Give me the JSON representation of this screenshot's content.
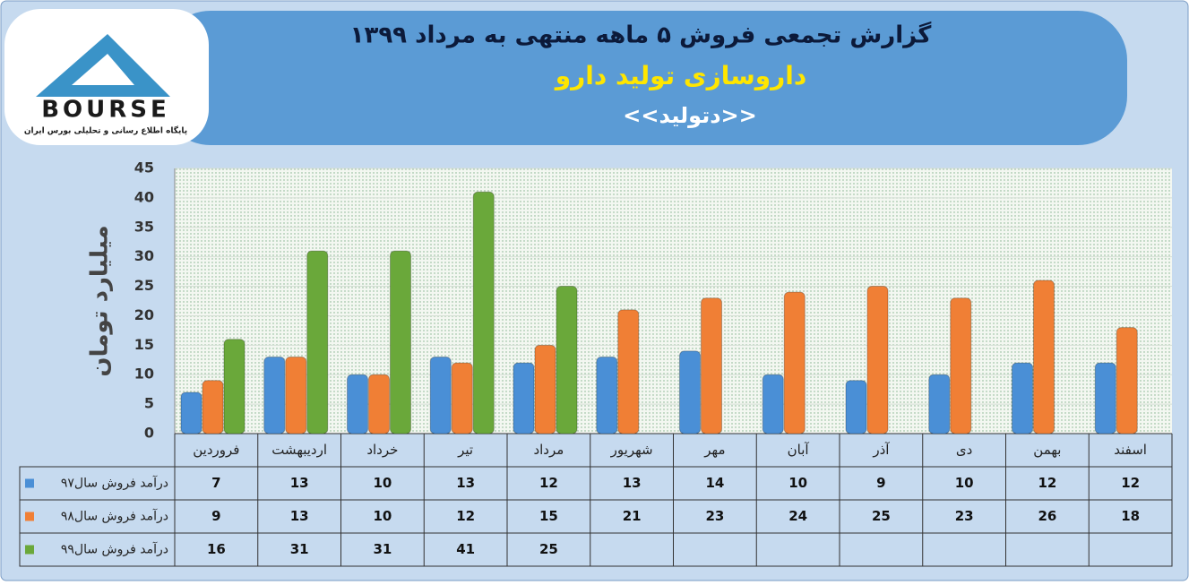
{
  "logo": {
    "text": "BOURSE",
    "subtitle": "پایگاه اطلاع رسانی و تحلیلی بورس ایران"
  },
  "chart_data": {
    "type": "bar",
    "title": "گزارش تجمعی فروش ۵ ماهه منتهی به مرداد ۱۳۹۹",
    "subtitle": "داروسازی تولید دارو",
    "symbol": "<<دتولید>>",
    "y_label": "میلیارد تومان",
    "categories": [
      "فروردین",
      "اردیبهشت",
      "خرداد",
      "تیر",
      "مرداد",
      "شهریور",
      "مهر",
      "آبان",
      "آذر",
      "دی",
      "بهمن",
      "اسفند"
    ],
    "series": [
      {
        "name": "درآمد فروش سال۹۷",
        "color": "#4a8fd6",
        "values": [
          7,
          13,
          10,
          13,
          12,
          13,
          14,
          10,
          9,
          10,
          12,
          12
        ]
      },
      {
        "name": "درآمد فروش سال۹۸",
        "color": "#f07f35",
        "values": [
          9,
          13,
          10,
          12,
          15,
          21,
          23,
          24,
          25,
          23,
          26,
          18
        ]
      },
      {
        "name": "درآمد فروش سال۹۹",
        "color": "#6aa83a",
        "values": [
          16,
          31,
          31,
          41,
          25,
          null,
          null,
          null,
          null,
          null,
          null,
          null
        ]
      }
    ],
    "ylim": [
      0,
      45
    ],
    "yticks": [
      0,
      5,
      10,
      15,
      20,
      25,
      30,
      35,
      40,
      45
    ],
    "grid": true
  }
}
